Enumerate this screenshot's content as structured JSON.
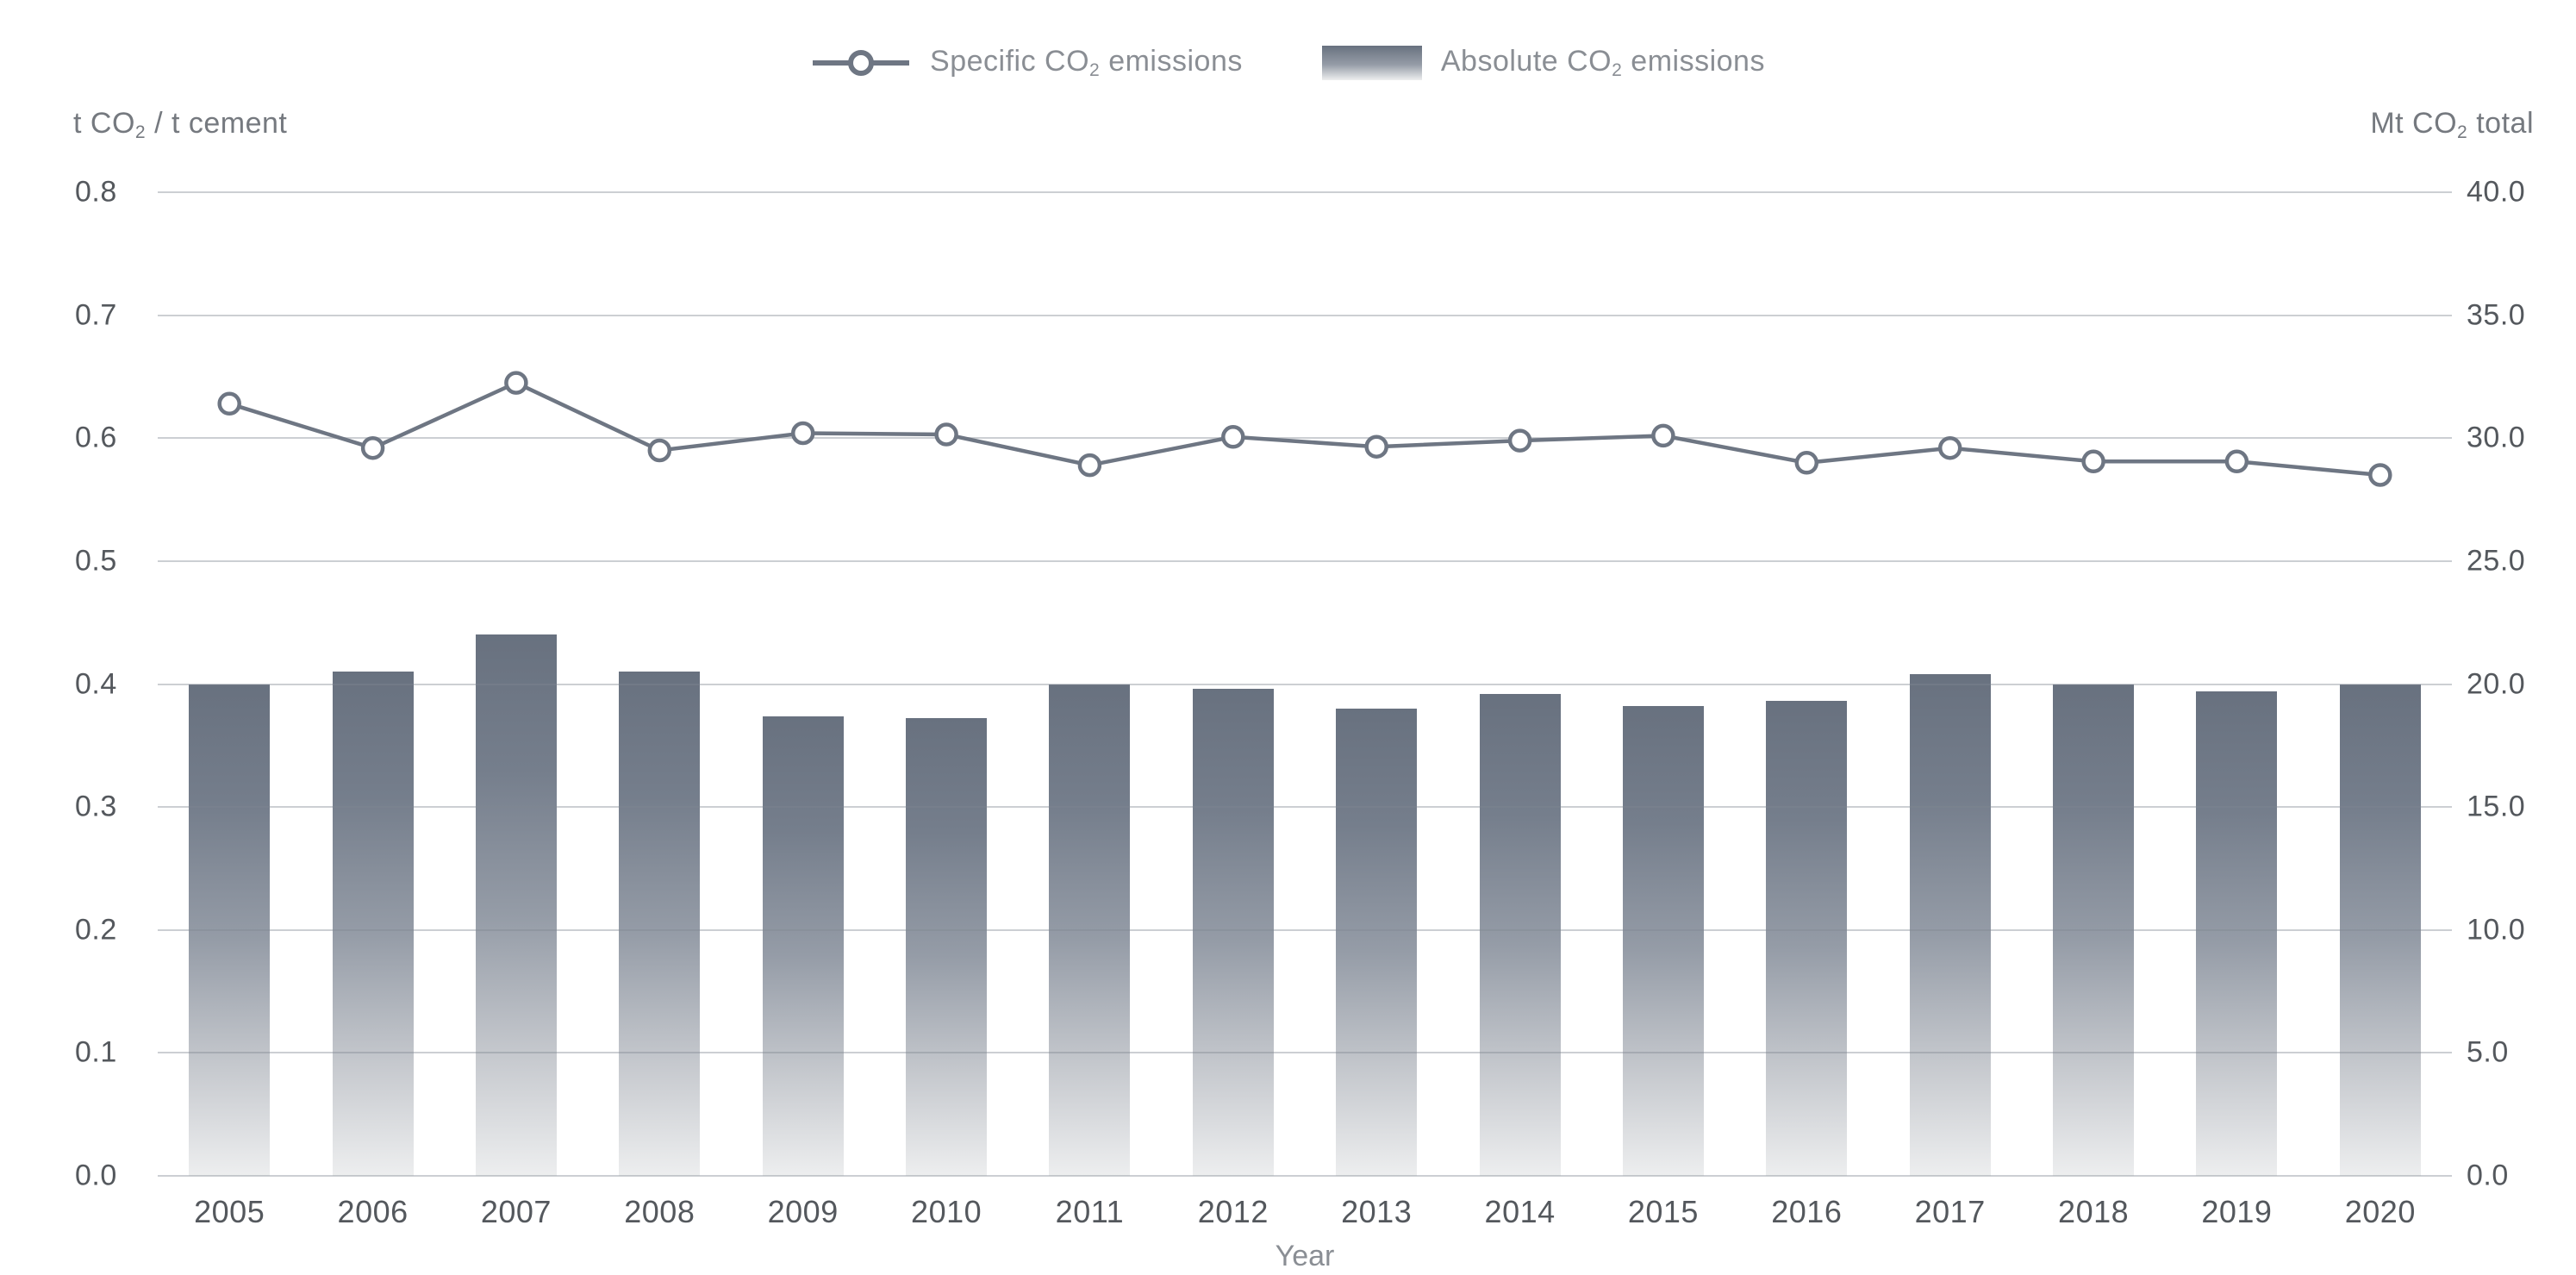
{
  "chart_data": {
    "type": "combo",
    "categories": [
      "2005",
      "2006",
      "2007",
      "2008",
      "2009",
      "2010",
      "2011",
      "2012",
      "2013",
      "2014",
      "2015",
      "2016",
      "2017",
      "2018",
      "2019",
      "2020"
    ],
    "series": [
      {
        "name": "Specific CO2 emissions",
        "type": "line",
        "axis": "left",
        "marker": "open-circle",
        "values": [
          0.628,
          0.592,
          0.645,
          0.59,
          0.604,
          0.603,
          0.578,
          0.601,
          0.593,
          0.598,
          0.602,
          0.58,
          0.592,
          0.581,
          0.581,
          0.57
        ]
      },
      {
        "name": "Absolute CO2 emissions",
        "type": "bar",
        "axis": "right",
        "values": [
          20.0,
          20.5,
          22.0,
          20.5,
          18.7,
          18.6,
          20.0,
          19.8,
          19.0,
          19.6,
          19.1,
          19.3,
          20.4,
          20.0,
          19.7,
          20.0
        ]
      }
    ],
    "title": "",
    "xlabel": "Year",
    "left_axis": {
      "unit_pre": "t CO",
      "unit_sub": "2",
      "unit_post": " / t cement",
      "ticks": [
        "0.8",
        "0.7",
        "0.6",
        "0.5",
        "0.4",
        "0.3",
        "0.2",
        "0.1",
        "0.0"
      ],
      "range": [
        0,
        0.8
      ]
    },
    "right_axis": {
      "unit_pre": "Mt CO",
      "unit_sub": "2",
      "unit_post": " total",
      "ticks": [
        "40.0",
        "35.0",
        "30.0",
        "25.0",
        "20.0",
        "15.0",
        "10.0",
        "5.0",
        "0.0"
      ],
      "range": [
        0,
        40
      ]
    },
    "grid": true,
    "legend_position": "top-center"
  },
  "legend": {
    "items": [
      {
        "label_pre": "Specific CO",
        "label_sub": "2",
        "label_post": " emissions",
        "swatch": "line-marker"
      },
      {
        "label_pre": "Absolute CO",
        "label_sub": "2",
        "label_post": " emissions",
        "swatch": "gradient-bar"
      }
    ]
  },
  "colors": {
    "line": "#6e7683",
    "marker_fill": "#ffffff",
    "bar_top": "#68717f",
    "bar_upper_mid": "#757e8c",
    "bar_mid": "#959ca7",
    "bar_lower_mid": "#c6c9ce",
    "bar_bottom": "#edeeef",
    "grid": "rgba(128,136,146,0.40)",
    "tick_text": "#54585d",
    "unit_text": "#75797f",
    "legend_text": "#8a8e94",
    "xlabel_text": "#8a8e94"
  }
}
